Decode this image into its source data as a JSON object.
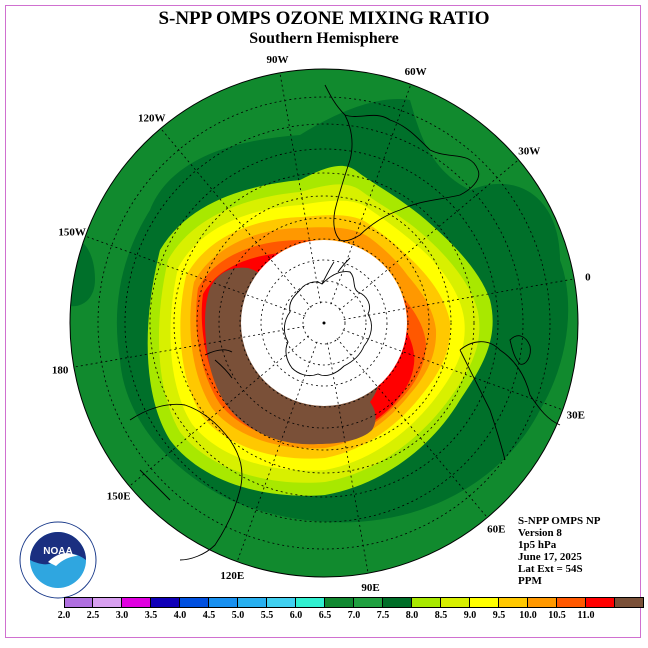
{
  "header": {
    "title": "S-NPP OMPS OZONE MIXING RATIO",
    "subtitle": "Southern Hemisphere"
  },
  "map": {
    "projection": "south polar stereographic",
    "longitude_labels": [
      "90W",
      "60W",
      "30W",
      "0",
      "30E",
      "60E",
      "90E",
      "120E",
      "150E",
      "180",
      "150W",
      "120W"
    ]
  },
  "info": {
    "line1": "S-NPP OMPS NP",
    "line2": "Version 8",
    "line3": "1p5 hPa",
    "line4": "June 17, 2025",
    "line5": "Lat Ext = 54S",
    "line6": "PPM"
  },
  "logo": {
    "text": "NOAA",
    "ring_text": "NATIONAL OCEANIC AND ATMOSPHERIC ADMINISTRATION · U.S. DEPARTMENT OF COMMERCE"
  },
  "colorbar": {
    "ticks": [
      "2.0",
      "2.5",
      "3.0",
      "3.5",
      "4.0",
      "4.5",
      "5.0",
      "5.5",
      "6.0",
      "6.5",
      "7.0",
      "7.5",
      "8.0",
      "8.5",
      "9.0",
      "9.5",
      "10.0",
      "10.5",
      "11.0"
    ],
    "colors": [
      "#b070e0",
      "#d8a0f0",
      "#e000e0",
      "#1000b8",
      "#0050e0",
      "#1890f0",
      "#28b0f0",
      "#40d0f0",
      "#30f0d0",
      "#108830",
      "#20a040",
      "#006e28",
      "#a8e800",
      "#d8f000",
      "#ffff00",
      "#ffc800",
      "#ff9800",
      "#ff5800",
      "#ff0000",
      "#7a5038"
    ]
  }
}
